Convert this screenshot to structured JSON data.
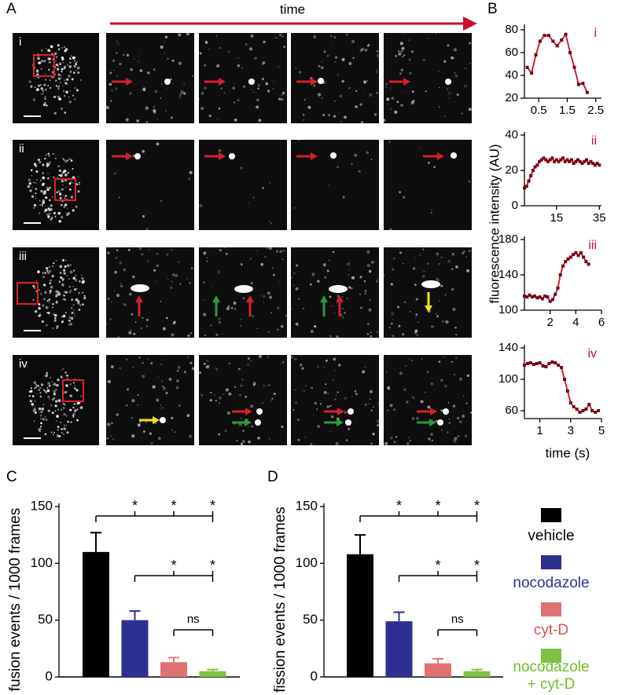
{
  "panel_labels": [
    "A",
    "B",
    "C",
    "D"
  ],
  "time_label": "time",
  "image_rows": [
    "i",
    "ii",
    "iii",
    "iv"
  ],
  "legend": [
    {
      "name": "vehicle",
      "color": "#000000",
      "text_color": "#000000"
    },
    {
      "name": "nocodazole",
      "color": "#2e3192",
      "text_color": "#2e3192"
    },
    {
      "name": "cyt-D",
      "color": "#e07272",
      "text_color": "#e0505a"
    },
    {
      "name": "nocodazole + cyt-D",
      "color": "#7dc242",
      "text_color": "#6bbf2a"
    }
  ],
  "chart_data": [
    {
      "type": "line",
      "annotation": "i",
      "color": "#c8102e",
      "x": [
        0.1,
        0.25,
        0.4,
        0.55,
        0.7,
        0.85,
        1.0,
        1.15,
        1.3,
        1.45,
        1.6,
        1.75,
        1.9,
        2.05,
        2.2
      ],
      "values": [
        47,
        42,
        58,
        70,
        75,
        75,
        70,
        66,
        71,
        76,
        60,
        47,
        32,
        33,
        25
      ],
      "xlim": [
        0,
        2.7
      ],
      "xticks": [
        0.5,
        1.5,
        2.5
      ],
      "ylim": [
        20,
        82
      ],
      "yticks": [
        20,
        40,
        60,
        80
      ]
    },
    {
      "type": "line",
      "annotation": "ii",
      "color": "#c8102e",
      "ylabel": "fluorescence intensity (AU)",
      "x": [
        0,
        1,
        2,
        3,
        4,
        5,
        6,
        7,
        8,
        9,
        10,
        11,
        12,
        13,
        14,
        15,
        16,
        17,
        18,
        19,
        20,
        21,
        22,
        23,
        24,
        25,
        26,
        27,
        28,
        29,
        30,
        31,
        32,
        33,
        34,
        35
      ],
      "values": [
        10,
        11,
        14,
        17,
        20,
        22,
        23,
        25,
        26,
        27,
        26,
        25,
        26,
        27,
        25,
        26,
        25,
        26,
        27,
        25,
        26,
        25,
        26,
        24,
        25,
        26,
        25,
        24,
        25,
        26,
        24,
        25,
        24,
        23,
        24,
        23
      ],
      "xlim": [
        0,
        36
      ],
      "xticks": [
        15,
        35
      ],
      "ylim": [
        0,
        40
      ],
      "yticks": [
        0,
        20,
        40
      ]
    },
    {
      "type": "line",
      "annotation": "iii",
      "color": "#c8102e",
      "x": [
        0,
        0.2,
        0.4,
        0.6,
        0.8,
        1,
        1.2,
        1.4,
        1.6,
        1.8,
        2,
        2.2,
        2.4,
        2.6,
        2.8,
        3,
        3.2,
        3.4,
        3.6,
        3.8,
        4,
        4.2,
        4.4,
        4.6,
        4.8,
        5
      ],
      "values": [
        116,
        115,
        117,
        115,
        116,
        114,
        115,
        113,
        116,
        115,
        110,
        112,
        118,
        125,
        140,
        150,
        155,
        158,
        160,
        163,
        165,
        162,
        165,
        160,
        155,
        152
      ],
      "xlim": [
        0,
        6
      ],
      "xticks": [
        2,
        4,
        6
      ],
      "ylim": [
        100,
        180
      ],
      "yticks": [
        100,
        140,
        180
      ]
    },
    {
      "type": "line",
      "annotation": "iv",
      "color": "#c8102e",
      "xlabel": "time (s)",
      "x": [
        0,
        0.2,
        0.4,
        0.6,
        0.8,
        1,
        1.2,
        1.4,
        1.6,
        1.8,
        2,
        2.2,
        2.4,
        2.6,
        2.8,
        3,
        3.2,
        3.4,
        3.6,
        3.8,
        4,
        4.2,
        4.4,
        4.6,
        4.8
      ],
      "values": [
        118,
        120,
        121,
        119,
        120,
        121,
        117,
        116,
        120,
        122,
        121,
        118,
        115,
        100,
        85,
        70,
        65,
        62,
        58,
        60,
        62,
        68,
        60,
        58,
        60
      ],
      "xlim": [
        0,
        5
      ],
      "xticks": [
        1,
        3,
        5
      ],
      "ylim": [
        50,
        140
      ],
      "yticks": [
        60,
        100,
        140
      ]
    },
    {
      "type": "bar",
      "ylabel": "fusion events / 1000 frames",
      "categories": [
        null,
        null,
        null,
        null
      ],
      "values": [
        110,
        50,
        13,
        5
      ],
      "errors": [
        17,
        8,
        4,
        1.5
      ],
      "colors": [
        "#000000",
        "#2e3192",
        "#e07272",
        "#7dc242"
      ],
      "ylim": [
        0,
        150
      ],
      "yticks": [
        0,
        50,
        100,
        150
      ],
      "comparisons": [
        {
          "from": 0,
          "to": 1,
          "label": "*"
        },
        {
          "from": 0,
          "to": 2,
          "label": "*"
        },
        {
          "from": 0,
          "to": 3,
          "label": "*"
        },
        {
          "from": 1,
          "to": 2,
          "label": "*"
        },
        {
          "from": 1,
          "to": 3,
          "label": "*"
        },
        {
          "from": 2,
          "to": 3,
          "label": "ns"
        }
      ]
    },
    {
      "type": "bar",
      "ylabel": "fission events / 1000 frames",
      "categories": [
        null,
        null,
        null,
        null
      ],
      "values": [
        108,
        49,
        12,
        5
      ],
      "errors": [
        17,
        8,
        4,
        1.5
      ],
      "colors": [
        "#000000",
        "#2e3192",
        "#e07272",
        "#7dc242"
      ],
      "ylim": [
        0,
        150
      ],
      "yticks": [
        0,
        50,
        100,
        150
      ],
      "comparisons": [
        {
          "from": 0,
          "to": 1,
          "label": "*"
        },
        {
          "from": 0,
          "to": 2,
          "label": "*"
        },
        {
          "from": 0,
          "to": 3,
          "label": "*"
        },
        {
          "from": 1,
          "to": 2,
          "label": "*"
        },
        {
          "from": 1,
          "to": 3,
          "label": "*"
        },
        {
          "from": 2,
          "to": 3,
          "label": "ns"
        }
      ]
    }
  ]
}
